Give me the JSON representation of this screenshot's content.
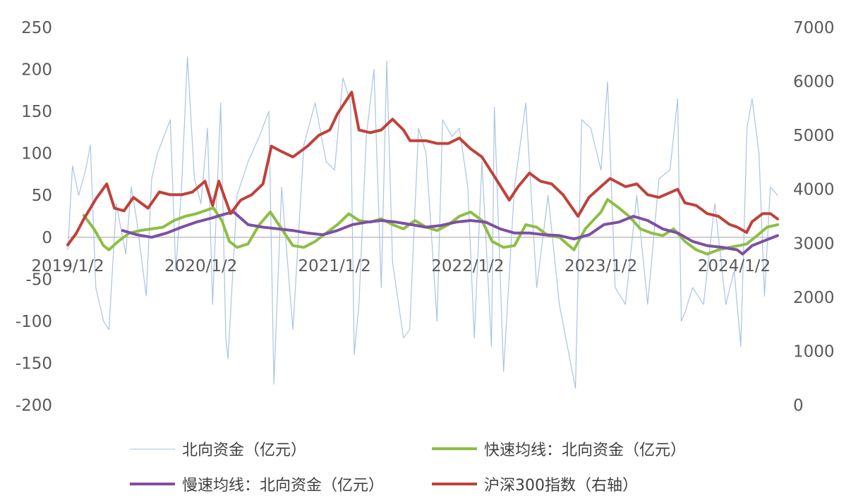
{
  "chart_data": {
    "type": "line",
    "title": "",
    "xlabel": "",
    "ylabel": "",
    "x_tick_labels": [
      "2019/1/2",
      "2020/1/2",
      "2021/1/2",
      "2022/1/2",
      "2023/1/2",
      "2024/1/2"
    ],
    "x_range": [
      "2019/1/2",
      "2024/4/30"
    ],
    "y_left": {
      "lim": [
        -200,
        250
      ],
      "ticks": [
        "250",
        "200",
        "150",
        "100",
        "50",
        "0",
        "-50",
        "-100",
        "-150",
        "-200"
      ]
    },
    "y_right": {
      "lim": [
        0,
        7000
      ],
      "ticks": [
        "7000",
        "6000",
        "5000",
        "4000",
        "3000",
        "2000",
        "1000",
        "0"
      ]
    },
    "grid": false,
    "legend_position": "bottom",
    "series": [
      {
        "name": "北向资金（亿元）",
        "axis": "left",
        "color": "#A9C4E4",
        "style": "thin",
        "note_values": "daily net flow, approximated by anchor points [date, value]",
        "values": [
          [
            "2019/1/2",
            -15
          ],
          [
            "2019/1/15",
            85
          ],
          [
            "2019/2/1",
            50
          ],
          [
            "2019/2/20",
            80
          ],
          [
            "2019/3/5",
            110
          ],
          [
            "2019/3/20",
            -60
          ],
          [
            "2019/4/10",
            -100
          ],
          [
            "2019/4/25",
            -110
          ],
          [
            "2019/5/15",
            40
          ],
          [
            "2019/6/10",
            -20
          ],
          [
            "2019/6/25",
            60
          ],
          [
            "2019/7/10",
            20
          ],
          [
            "2019/8/5",
            -70
          ],
          [
            "2019/8/20",
            70
          ],
          [
            "2019/9/5",
            100
          ],
          [
            "2019/10/10",
            140
          ],
          [
            "2019/10/25",
            -40
          ],
          [
            "2019/11/10",
            60
          ],
          [
            "2019/11/26",
            215
          ],
          [
            "2019/12/15",
            70
          ],
          [
            "2020/1/2",
            40
          ],
          [
            "2020/1/20",
            130
          ],
          [
            "2020/2/3",
            -80
          ],
          [
            "2020/2/25",
            160
          ],
          [
            "2020/3/10",
            -120
          ],
          [
            "2020/3/16",
            -145
          ],
          [
            "2020/4/10",
            50
          ],
          [
            "2020/5/10",
            90
          ],
          [
            "2020/6/10",
            120
          ],
          [
            "2020/7/6",
            150
          ],
          [
            "2020/7/20",
            -175
          ],
          [
            "2020/8/10",
            60
          ],
          [
            "2020/9/10",
            -110
          ],
          [
            "2020/10/10",
            110
          ],
          [
            "2020/11/10",
            160
          ],
          [
            "2020/12/10",
            90
          ],
          [
            "2021/1/2",
            80
          ],
          [
            "2021/1/25",
            190
          ],
          [
            "2021/2/15",
            160
          ],
          [
            "2021/2/25",
            -140
          ],
          [
            "2021/3/10",
            -80
          ],
          [
            "2021/3/30",
            120
          ],
          [
            "2021/4/20",
            200
          ],
          [
            "2021/5/10",
            -60
          ],
          [
            "2021/5/25",
            210
          ],
          [
            "2021/6/10",
            -30
          ],
          [
            "2021/7/10",
            -120
          ],
          [
            "2021/7/27",
            -110
          ],
          [
            "2021/8/20",
            130
          ],
          [
            "2021/9/10",
            100
          ],
          [
            "2021/10/10",
            -100
          ],
          [
            "2021/10/25",
            140
          ],
          [
            "2021/11/20",
            120
          ],
          [
            "2021/12/10",
            130
          ],
          [
            "2022/1/2",
            60
          ],
          [
            "2022/1/20",
            -120
          ],
          [
            "2022/2/10",
            90
          ],
          [
            "2022/3/8",
            -130
          ],
          [
            "2022/3/16",
            155
          ],
          [
            "2022/4/10",
            -160
          ],
          [
            "2022/5/10",
            60
          ],
          [
            "2022/6/10",
            160
          ],
          [
            "2022/7/10",
            -60
          ],
          [
            "2022/8/10",
            50
          ],
          [
            "2022/9/10",
            -80
          ],
          [
            "2022/10/24",
            -180
          ],
          [
            "2022/11/10",
            140
          ],
          [
            "2022/12/5",
            130
          ],
          [
            "2023/1/2",
            80
          ],
          [
            "2023/1/20",
            185
          ],
          [
            "2023/2/10",
            -60
          ],
          [
            "2023/3/10",
            -80
          ],
          [
            "2023/4/10",
            50
          ],
          [
            "2023/5/10",
            -80
          ],
          [
            "2023/6/10",
            70
          ],
          [
            "2023/7/10",
            80
          ],
          [
            "2023/7/31",
            165
          ],
          [
            "2023/8/10",
            -100
          ],
          [
            "2023/8/20",
            -90
          ],
          [
            "2023/9/10",
            -60
          ],
          [
            "2023/10/10",
            -80
          ],
          [
            "2023/11/10",
            40
          ],
          [
            "2023/12/10",
            -80
          ],
          [
            "2024/1/2",
            -40
          ],
          [
            "2024/1/20",
            -130
          ],
          [
            "2024/2/6",
            130
          ],
          [
            "2024/2/20",
            165
          ],
          [
            "2024/3/10",
            100
          ],
          [
            "2024/3/25",
            -70
          ],
          [
            "2024/4/10",
            60
          ],
          [
            "2024/4/30",
            50
          ]
        ]
      },
      {
        "name": "快速均线：北向资金（亿元）",
        "axis": "left",
        "color": "#8DBE45",
        "values": [
          [
            "2019/2/15",
            26
          ],
          [
            "2019/3/15",
            10
          ],
          [
            "2019/4/10",
            -10
          ],
          [
            "2019/4/25",
            -15
          ],
          [
            "2019/5/20",
            -5
          ],
          [
            "2019/6/20",
            5
          ],
          [
            "2019/7/20",
            8
          ],
          [
            "2019/8/20",
            10
          ],
          [
            "2019/9/20",
            12
          ],
          [
            "2019/10/20",
            20
          ],
          [
            "2019/11/20",
            25
          ],
          [
            "2019/12/20",
            28
          ],
          [
            "2020/1/15",
            32
          ],
          [
            "2020/2/5",
            35
          ],
          [
            "2020/2/28",
            20
          ],
          [
            "2020/3/20",
            -5
          ],
          [
            "2020/4/10",
            -12
          ],
          [
            "2020/5/10",
            -8
          ],
          [
            "2020/6/10",
            15
          ],
          [
            "2020/7/10",
            30
          ],
          [
            "2020/8/10",
            10
          ],
          [
            "2020/9/10",
            -10
          ],
          [
            "2020/10/10",
            -12
          ],
          [
            "2020/11/10",
            -5
          ],
          [
            "2020/12/10",
            5
          ],
          [
            "2021/1/10",
            15
          ],
          [
            "2021/2/10",
            28
          ],
          [
            "2021/3/10",
            20
          ],
          [
            "2021/4/10",
            18
          ],
          [
            "2021/5/10",
            22
          ],
          [
            "2021/6/10",
            15
          ],
          [
            "2021/7/10",
            10
          ],
          [
            "2021/8/10",
            20
          ],
          [
            "2021/9/10",
            12
          ],
          [
            "2021/10/10",
            8
          ],
          [
            "2021/11/10",
            15
          ],
          [
            "2021/12/10",
            25
          ],
          [
            "2022/1/10",
            30
          ],
          [
            "2022/2/10",
            20
          ],
          [
            "2022/3/10",
            -5
          ],
          [
            "2022/4/10",
            -12
          ],
          [
            "2022/5/10",
            -10
          ],
          [
            "2022/6/10",
            15
          ],
          [
            "2022/7/10",
            12
          ],
          [
            "2022/8/10",
            2
          ],
          [
            "2022/9/10",
            0
          ],
          [
            "2022/10/20",
            -15
          ],
          [
            "2022/11/20",
            10
          ],
          [
            "2023/1/2",
            30
          ],
          [
            "2023/1/20",
            45
          ],
          [
            "2023/2/20",
            35
          ],
          [
            "2023/3/20",
            25
          ],
          [
            "2023/4/20",
            10
          ],
          [
            "2023/5/20",
            5
          ],
          [
            "2023/6/20",
            2
          ],
          [
            "2023/7/20",
            10
          ],
          [
            "2023/8/20",
            -5
          ],
          [
            "2023/9/20",
            -15
          ],
          [
            "2023/10/20",
            -20
          ],
          [
            "2023/11/20",
            -15
          ],
          [
            "2023/12/20",
            -12
          ],
          [
            "2024/1/15",
            -10
          ],
          [
            "2024/2/5",
            -8
          ],
          [
            "2024/3/5",
            2
          ],
          [
            "2024/4/1",
            12
          ],
          [
            "2024/4/30",
            15
          ]
        ]
      },
      {
        "name": "慢速均线：北向资金（亿元）",
        "axis": "left",
        "color": "#7E4FA3",
        "values": [
          [
            "2019/6/1",
            8
          ],
          [
            "2019/7/10",
            3
          ],
          [
            "2019/8/20",
            0
          ],
          [
            "2019/9/30",
            5
          ],
          [
            "2019/11/10",
            12
          ],
          [
            "2019/12/20",
            18
          ],
          [
            "2020/2/1",
            23
          ],
          [
            "2020/3/10",
            28
          ],
          [
            "2020/4/1",
            30
          ],
          [
            "2020/5/10",
            15
          ],
          [
            "2020/6/20",
            12
          ],
          [
            "2020/8/1",
            10
          ],
          [
            "2020/9/10",
            8
          ],
          [
            "2020/10/20",
            5
          ],
          [
            "2020/12/1",
            3
          ],
          [
            "2021/1/10",
            8
          ],
          [
            "2021/2/20",
            15
          ],
          [
            "2021/4/1",
            18
          ],
          [
            "2021/5/10",
            20
          ],
          [
            "2021/6/20",
            18
          ],
          [
            "2021/8/1",
            15
          ],
          [
            "2021/9/10",
            12
          ],
          [
            "2021/10/20",
            14
          ],
          [
            "2021/12/1",
            18
          ],
          [
            "2022/1/10",
            20
          ],
          [
            "2022/2/20",
            18
          ],
          [
            "2022/4/1",
            10
          ],
          [
            "2022/5/10",
            5
          ],
          [
            "2022/6/20",
            5
          ],
          [
            "2022/8/1",
            3
          ],
          [
            "2022/9/10",
            2
          ],
          [
            "2022/10/20",
            -2
          ],
          [
            "2022/12/1",
            3
          ],
          [
            "2023/1/10",
            15
          ],
          [
            "2023/2/20",
            18
          ],
          [
            "2023/4/1",
            25
          ],
          [
            "2023/5/10",
            20
          ],
          [
            "2023/6/20",
            10
          ],
          [
            "2023/8/1",
            5
          ],
          [
            "2023/9/10",
            -5
          ],
          [
            "2023/10/20",
            -10
          ],
          [
            "2023/12/1",
            -12
          ],
          [
            "2024/1/10",
            -15
          ],
          [
            "2024/1/25",
            -20
          ],
          [
            "2024/2/20",
            -10
          ],
          [
            "2024/3/20",
            -5
          ],
          [
            "2024/4/30",
            2
          ]
        ]
      },
      {
        "name": "沪深300指数（右轴）",
        "axis": "right",
        "color": "#C0413B",
        "values": [
          [
            "2019/1/2",
            2970
          ],
          [
            "2019/1/25",
            3180
          ],
          [
            "2019/2/15",
            3450
          ],
          [
            "2019/3/5",
            3650
          ],
          [
            "2019/3/20",
            3820
          ],
          [
            "2019/4/19",
            4100
          ],
          [
            "2019/5/10",
            3650
          ],
          [
            "2019/6/5",
            3600
          ],
          [
            "2019/7/1",
            3850
          ],
          [
            "2019/8/10",
            3650
          ],
          [
            "2019/9/10",
            3950
          ],
          [
            "2019/10/10",
            3900
          ],
          [
            "2019/11/10",
            3900
          ],
          [
            "2019/12/10",
            3950
          ],
          [
            "2020/1/13",
            4150
          ],
          [
            "2020/2/3",
            3700
          ],
          [
            "2020/2/20",
            4150
          ],
          [
            "2020/3/23",
            3550
          ],
          [
            "2020/4/20",
            3800
          ],
          [
            "2020/5/20",
            3900
          ],
          [
            "2020/6/20",
            4100
          ],
          [
            "2020/7/13",
            4800
          ],
          [
            "2020/8/10",
            4700
          ],
          [
            "2020/9/10",
            4600
          ],
          [
            "2020/10/20",
            4800
          ],
          [
            "2020/11/20",
            5000
          ],
          [
            "2020/12/20",
            5100
          ],
          [
            "2021/1/10",
            5400
          ],
          [
            "2021/2/18",
            5800
          ],
          [
            "2021/3/10",
            5100
          ],
          [
            "2021/4/10",
            5050
          ],
          [
            "2021/5/10",
            5100
          ],
          [
            "2021/6/10",
            5300
          ],
          [
            "2021/7/10",
            5100
          ],
          [
            "2021/7/28",
            4900
          ],
          [
            "2021/9/10",
            4900
          ],
          [
            "2021/10/10",
            4850
          ],
          [
            "2021/11/10",
            4850
          ],
          [
            "2021/12/10",
            4950
          ],
          [
            "2022/1/10",
            4750
          ],
          [
            "2022/2/10",
            4600
          ],
          [
            "2022/3/15",
            4250
          ],
          [
            "2022/4/26",
            3800
          ],
          [
            "2022/5/20",
            4050
          ],
          [
            "2022/6/20",
            4300
          ],
          [
            "2022/7/20",
            4150
          ],
          [
            "2022/8/20",
            4100
          ],
          [
            "2022/9/20",
            3900
          ],
          [
            "2022/10/31",
            3500
          ],
          [
            "2022/11/30",
            3850
          ],
          [
            "2023/1/10",
            4100
          ],
          [
            "2023/1/27",
            4200
          ],
          [
            "2023/3/10",
            4050
          ],
          [
            "2023/4/10",
            4100
          ],
          [
            "2023/5/10",
            3900
          ],
          [
            "2023/6/10",
            3850
          ],
          [
            "2023/7/31",
            4000
          ],
          [
            "2023/8/20",
            3750
          ],
          [
            "2023/9/20",
            3700
          ],
          [
            "2023/10/20",
            3550
          ],
          [
            "2023/11/20",
            3500
          ],
          [
            "2023/12/20",
            3350
          ],
          [
            "2024/1/10",
            3300
          ],
          [
            "2024/2/5",
            3200
          ],
          [
            "2024/2/20",
            3400
          ],
          [
            "2024/3/20",
            3550
          ],
          [
            "2024/4/10",
            3550
          ],
          [
            "2024/4/30",
            3450
          ]
        ]
      }
    ]
  }
}
